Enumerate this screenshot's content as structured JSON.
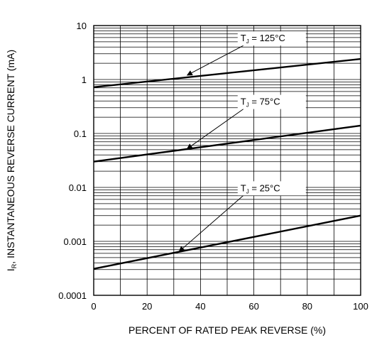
{
  "chart_data": {
    "type": "line",
    "xlabel": "PERCENT OF RATED PEAK REVERSE (%)",
    "ylabel": {
      "main": "I",
      "sub": "R",
      "rest": ", INSTANTANEOUS REVERSE CURRENT (mA)"
    },
    "xlim": [
      0,
      100
    ],
    "ylim": [
      0.0001,
      10
    ],
    "yscale": "log",
    "grid": true,
    "x_ticks": [
      "0",
      "20",
      "40",
      "60",
      "80",
      "100"
    ],
    "y_ticks": [
      "0.0001",
      "0.001",
      "0.01",
      "0.1",
      "1",
      "10"
    ],
    "series": [
      {
        "name": {
          "main": "T",
          "sub": "J",
          "rest": " = 125°C"
        },
        "x": [
          0,
          100
        ],
        "y": [
          0.72,
          2.4
        ],
        "label_at": [
          55,
          5.1
        ],
        "arrow_to": [
          35,
          1.2
        ]
      },
      {
        "name": {
          "main": "T",
          "sub": "J",
          "rest": " = 75°C"
        },
        "x": [
          0,
          100
        ],
        "y": [
          0.03,
          0.14
        ],
        "label_at": [
          55,
          0.34
        ],
        "arrow_to": [
          35,
          0.052
        ]
      },
      {
        "name": {
          "main": "T",
          "sub": "J",
          "rest": " = 25°C"
        },
        "x": [
          0,
          100
        ],
        "y": [
          0.00031,
          0.003
        ],
        "label_at": [
          55,
          0.0085
        ],
        "arrow_to": [
          32,
          0.00065
        ]
      }
    ]
  }
}
